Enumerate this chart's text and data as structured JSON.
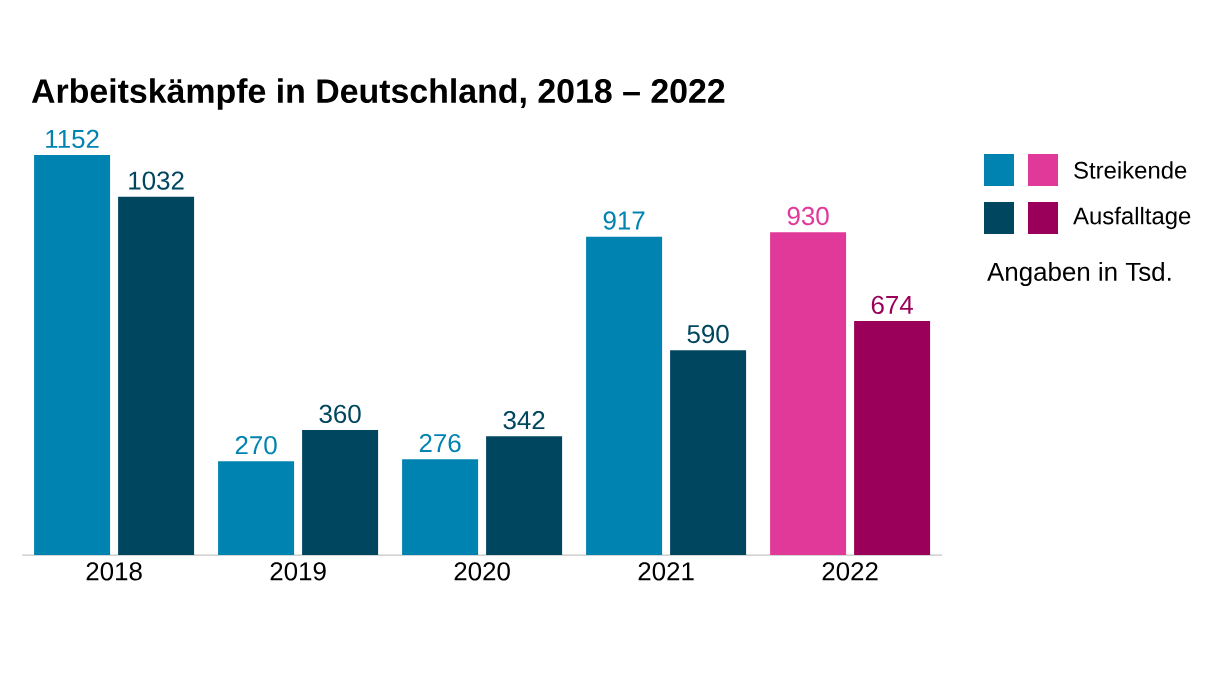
{
  "chart_data": {
    "type": "bar",
    "title": "Arbeitskämpfe in Deutschland, 2018 – 2022",
    "categories": [
      "2018",
      "2019",
      "2020",
      "2021",
      "2022"
    ],
    "series": [
      {
        "name": "Streikende",
        "color": "#0083b0",
        "colors": [
          "#0083b0",
          "#0083b0",
          "#0083b0",
          "#0083b0",
          "#e0399a"
        ],
        "values": [
          1152,
          270,
          276,
          917,
          930
        ]
      },
      {
        "name": "Ausfalltage",
        "color": "#00465f",
        "colors": [
          "#00465f",
          "#00465f",
          "#00465f",
          "#00465f",
          "#9a0059"
        ],
        "values": [
          1032,
          360,
          342,
          590,
          674
        ]
      }
    ],
    "data_labels": true,
    "legend": "right",
    "annotations": [
      "Angaben in Tsd."
    ]
  }
}
